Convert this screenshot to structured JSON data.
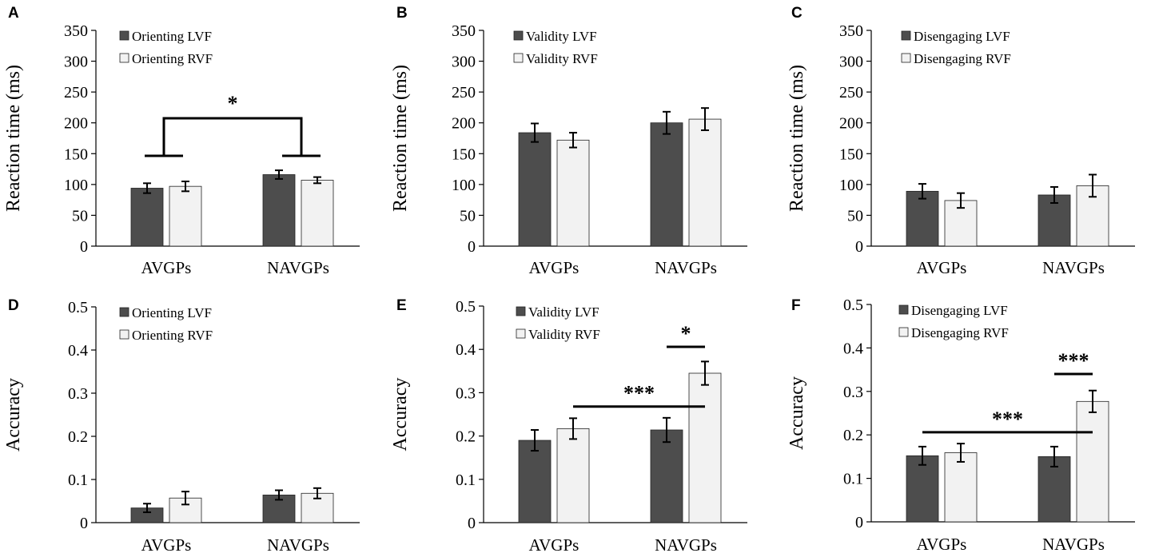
{
  "colors": {
    "lvf": "#4d4d4d",
    "rvf": "#f2f2f2",
    "edge": "#222222",
    "axis": "#000000"
  },
  "chart_data": [
    {
      "panel": "A",
      "type": "bar",
      "categories": [
        "AVGPs",
        "NAVGPs"
      ],
      "series": [
        {
          "name": "Orienting LVF",
          "values": [
            94,
            116
          ],
          "errors": [
            8,
            7
          ]
        },
        {
          "name": "Orienting RVF",
          "values": [
            97,
            107
          ],
          "errors": [
            8,
            5
          ]
        }
      ],
      "ylabel": "Reaction time (ms)",
      "ylim": [
        0,
        350
      ],
      "yticks": [
        "0",
        "50",
        "100",
        "150",
        "200",
        "250",
        "300",
        "350"
      ],
      "tick_values": [
        0,
        50,
        100,
        150,
        200,
        250,
        300,
        350
      ],
      "annotations": [
        {
          "type": "group-bracket",
          "label": "*",
          "from": 0,
          "to": 1,
          "y": 148,
          "base": 148,
          "pair_y": 148
        }
      ]
    },
    {
      "panel": "B",
      "type": "bar",
      "categories": [
        "AVGPs",
        "NAVGPs"
      ],
      "series": [
        {
          "name": "Validity LVF",
          "values": [
            184,
            200
          ],
          "errors": [
            15,
            18
          ]
        },
        {
          "name": "Validity RVF",
          "values": [
            172,
            206
          ],
          "errors": [
            12,
            18
          ]
        }
      ],
      "ylabel": "Reaction time (ms)",
      "ylim": [
        0,
        350
      ],
      "yticks": [
        "0",
        "50",
        "100",
        "150",
        "200",
        "250",
        "300",
        "350"
      ],
      "tick_values": [
        0,
        50,
        100,
        150,
        200,
        250,
        300,
        350
      ],
      "annotations": []
    },
    {
      "panel": "C",
      "type": "bar",
      "categories": [
        "AVGPs",
        "NAVGPs"
      ],
      "series": [
        {
          "name": "Disengaging LVF",
          "values": [
            89,
            83
          ],
          "errors": [
            12,
            13
          ]
        },
        {
          "name": "Disengaging RVF",
          "values": [
            74,
            98
          ],
          "errors": [
            12,
            18
          ]
        }
      ],
      "ylabel": "Reaction time (ms)",
      "ylim": [
        0,
        350
      ],
      "yticks": [
        "0",
        "50",
        "100",
        "150",
        "200",
        "250",
        "300",
        "350"
      ],
      "tick_values": [
        0,
        50,
        100,
        150,
        200,
        250,
        300,
        350
      ],
      "annotations": []
    },
    {
      "panel": "D",
      "type": "bar",
      "categories": [
        "AVGPs",
        "NAVGPs"
      ],
      "series": [
        {
          "name": "Orienting LVF",
          "values": [
            0.034,
            0.064
          ],
          "errors": [
            0.01,
            0.011
          ]
        },
        {
          "name": "Orienting RVF",
          "values": [
            0.057,
            0.068
          ],
          "errors": [
            0.015,
            0.012
          ]
        }
      ],
      "ylabel": "Accuracy",
      "ylim": [
        0,
        0.5
      ],
      "yticks": [
        "0",
        "0.1",
        "0.2",
        "0.3",
        "0.4",
        "0.5"
      ],
      "tick_values": [
        0,
        0.1,
        0.2,
        0.3,
        0.4,
        0.5
      ],
      "annotations": []
    },
    {
      "panel": "E",
      "type": "bar",
      "categories": [
        "AVGPs",
        "NAVGPs"
      ],
      "series": [
        {
          "name": "Validity LVF",
          "values": [
            0.19,
            0.214
          ],
          "errors": [
            0.024,
            0.028
          ]
        },
        {
          "name": "Validity RVF",
          "values": [
            0.217,
            0.345
          ],
          "errors": [
            0.024,
            0.027
          ]
        }
      ],
      "ylabel": "Accuracy",
      "ylim": [
        0,
        0.5
      ],
      "yticks": [
        "0",
        "0.1",
        "0.2",
        "0.3",
        "0.4",
        "0.5"
      ],
      "tick_values": [
        0,
        0.1,
        0.2,
        0.3,
        0.4,
        0.5
      ],
      "annotations": [
        {
          "type": "line",
          "label": "***",
          "from_cat": 0,
          "from_series": 1,
          "to_cat": 1,
          "to_series": 1,
          "y": 0.268
        },
        {
          "type": "line",
          "label": "*",
          "from_cat": 1,
          "from_series": 0,
          "to_cat": 1,
          "to_series": 1,
          "y": 0.406
        }
      ]
    },
    {
      "panel": "F",
      "type": "bar",
      "categories": [
        "AVGPs",
        "NAVGPs"
      ],
      "series": [
        {
          "name": "Disengaging LVF",
          "values": [
            0.152,
            0.15
          ],
          "errors": [
            0.021,
            0.023
          ]
        },
        {
          "name": "Disengaging RVF",
          "values": [
            0.159,
            0.277
          ],
          "errors": [
            0.021,
            0.025
          ]
        }
      ],
      "ylabel": "Accuracy",
      "ylim": [
        0,
        0.5
      ],
      "yticks": [
        "0",
        "0.1",
        "0.2",
        "0.3",
        "0.4",
        "0.5"
      ],
      "tick_values": [
        0,
        0.1,
        0.2,
        0.3,
        0.4,
        0.5
      ],
      "annotations": [
        {
          "type": "line",
          "label": "***",
          "from_cat": 0,
          "from_series": 0,
          "to_cat": 1,
          "to_series": 1,
          "y": 0.206
        },
        {
          "type": "line",
          "label": "***",
          "from_cat": 1,
          "from_series": 0,
          "to_cat": 1,
          "to_series": 1,
          "y": 0.34
        }
      ]
    }
  ]
}
